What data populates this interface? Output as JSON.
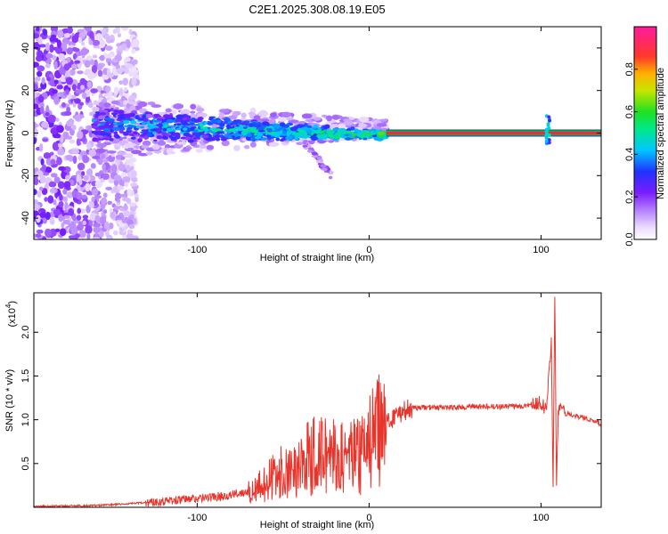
{
  "title": "C2E1.2025.308.08.19.E05",
  "colors": {
    "snr_line": "#e8352c",
    "doppler_line_core": "#ff1d58",
    "doppler_line_edge": "#00c800"
  },
  "chart_data": [
    {
      "type": "heatmap",
      "name": "doppler-spectrum",
      "xlabel": "Height of straight line (km)",
      "ylabel": "Frequency (Hz)",
      "xlim": [
        -195,
        135
      ],
      "ylim": [
        -50,
        50
      ],
      "xticks": [
        "-100",
        "0",
        "100"
      ],
      "xtick_values": [
        -100,
        0,
        100
      ],
      "yticks": [
        "40",
        "20",
        "0",
        "-20",
        "-40"
      ],
      "ytick_values": [
        40,
        20,
        0,
        -20,
        -40
      ],
      "colorbar": {
        "label": "Normalized spectral amplitude",
        "range": [
          0,
          1
        ],
        "ticks": [
          "0.0",
          "0.2",
          "0.4",
          "0.6",
          "0.8"
        ],
        "tick_values": [
          0.0,
          0.2,
          0.4,
          0.6,
          0.8
        ]
      },
      "features": {
        "noise_region_km": [
          -195,
          -135
        ],
        "signal_band_km": [
          -160,
          10
        ],
        "steady_line_km": [
          10,
          135
        ],
        "steady_line_freq_hz": 0,
        "spike_km": 104,
        "tail_end_km": [
          -22,
          -23
        ]
      }
    },
    {
      "type": "line",
      "name": "snr",
      "xlabel": "Height of straight line (km)",
      "ylabel": "SNR (10 * v/v)",
      "y_multiplier": "(x10",
      "y_multiplier_exp": "4",
      "y_multiplier_close": ")",
      "xlim": [
        -195,
        135
      ],
      "ylim": [
        0,
        2.45
      ],
      "xticks": [
        "-100",
        "0",
        "100"
      ],
      "xtick_values": [
        -100,
        0,
        100
      ],
      "yticks": [
        "0.5",
        "1.0",
        "1.5",
        "2.0"
      ],
      "ytick_values": [
        0.5,
        1.0,
        1.5,
        2.0
      ],
      "series": [
        {
          "name": "SNR",
          "x": [
            -195,
            -160,
            -140,
            -120,
            -100,
            -80,
            -65,
            -55,
            -45,
            -35,
            -28,
            -20,
            -12,
            -5,
            0,
            5,
            10,
            15,
            20,
            25,
            30,
            40,
            50,
            60,
            70,
            80,
            90,
            95,
            100,
            103,
            106,
            107,
            108,
            109,
            110,
            112,
            115,
            120,
            125,
            130,
            135
          ],
          "y": [
            0.01,
            0.02,
            0.04,
            0.07,
            0.1,
            0.14,
            0.22,
            0.35,
            0.45,
            0.55,
            0.62,
            0.58,
            0.55,
            0.6,
            0.72,
            0.85,
            0.95,
            1.05,
            1.1,
            1.13,
            1.14,
            1.14,
            1.14,
            1.15,
            1.15,
            1.15,
            1.16,
            1.18,
            1.2,
            1.1,
            1.9,
            0.18,
            2.4,
            0.3,
            1.1,
            1.15,
            1.08,
            1.05,
            1.02,
            1.0,
            0.95
          ]
        }
      ]
    }
  ]
}
